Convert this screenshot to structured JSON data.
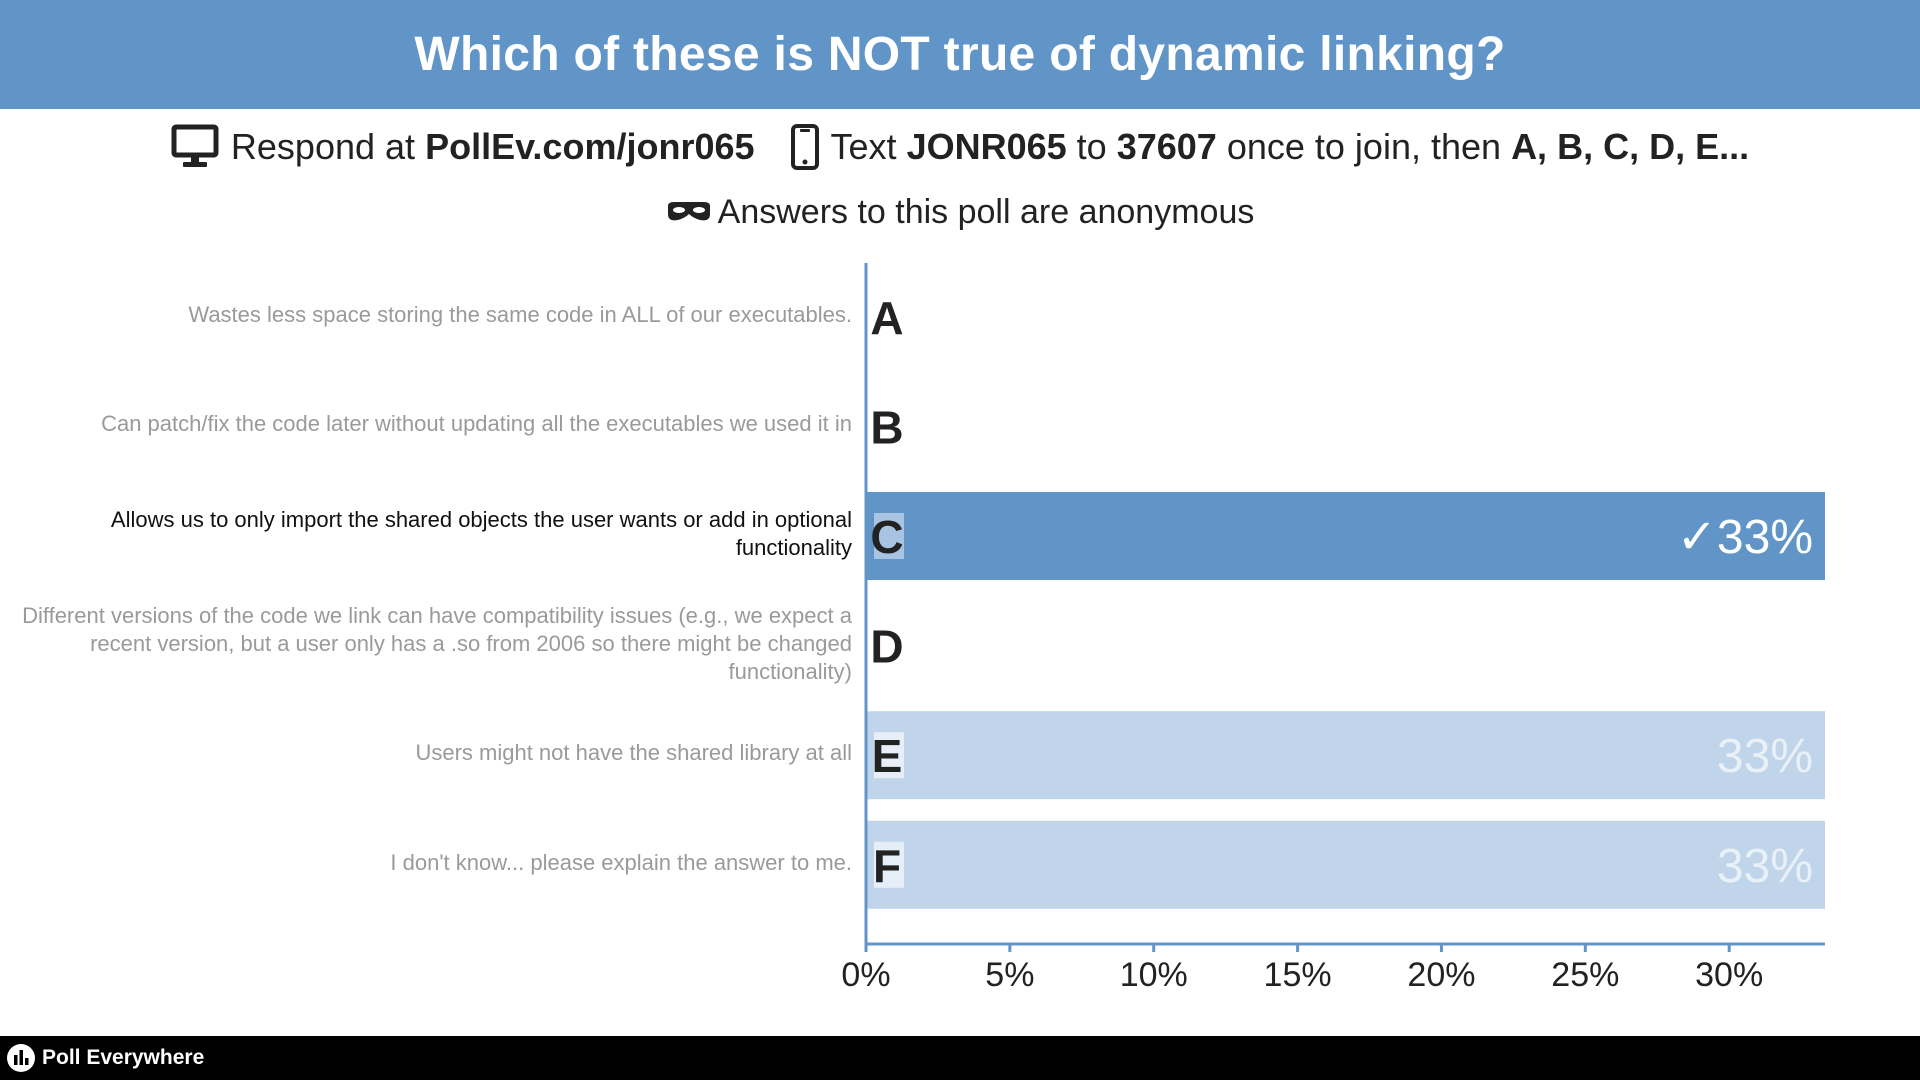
{
  "header": {
    "title": "Which of these is NOT true of dynamic linking?"
  },
  "instructions": {
    "respond_prefix": "Respond at",
    "respond_url": "PollEv.com/jonr065",
    "text_prefix": "Text",
    "text_code": "JONR065",
    "text_to": "to",
    "text_number": "37607",
    "text_suffix": "once to join, then",
    "text_options": "A, B, C, D, E...",
    "monitor_icon": "monitor-icon",
    "phone_icon": "phone-icon"
  },
  "anonymous": {
    "text": "Answers to this poll are anonymous",
    "icon": "mask-icon"
  },
  "colors": {
    "header_bg": "#6195c8",
    "correct_bar": "#6195c8",
    "other_bar": "#c0d5e9",
    "axis": "#6195c8",
    "footer_bg": "#000000"
  },
  "chart_data": {
    "type": "bar",
    "orientation": "horizontal",
    "categories": [
      "A",
      "B",
      "C",
      "D",
      "E",
      "F"
    ],
    "option_texts": [
      "Wastes less space storing the same code in ALL of our executables.",
      "Can patch/fix the code later without updating all the executables we used it in",
      "Allows us to only import the shared objects the user wants or add in optional functionality",
      "Different versions of the code we link can have compatibility issues (e.g., we expect a recent version, but a user only has a .so from 2006 so there might be changed functionality)",
      "Users might not have the shared library at all",
      "I don't know... please explain the answer to me."
    ],
    "values": [
      0,
      0,
      33.33,
      0,
      33.33,
      33.33
    ],
    "value_labels": [
      "",
      "",
      "33%",
      "",
      "33%",
      "33%"
    ],
    "correct": [
      false,
      false,
      true,
      false,
      false,
      false
    ],
    "correct_mark": "✓",
    "xlim": [
      0,
      33.33
    ],
    "xticks": [
      0,
      5,
      10,
      15,
      20,
      25,
      30
    ],
    "xtick_labels": [
      "0%",
      "5%",
      "10%",
      "15%",
      "20%",
      "25%",
      "30%"
    ],
    "grid": false
  },
  "footer": {
    "brand": "Poll Everywhere",
    "logo_icon": "poll-everywhere-logo-icon"
  }
}
